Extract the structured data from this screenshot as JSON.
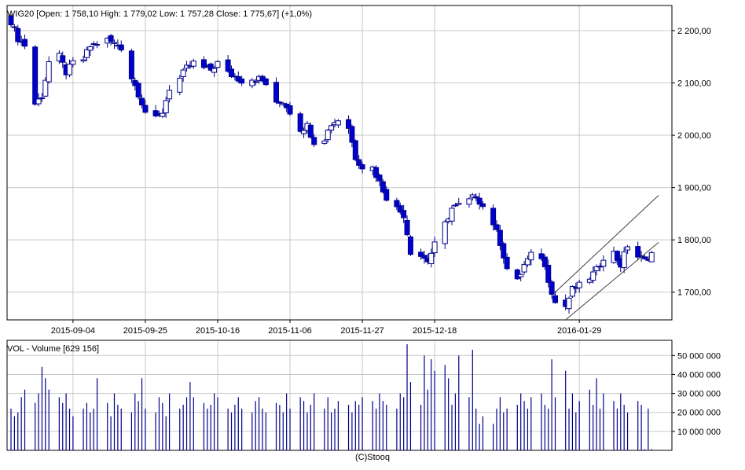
{
  "price_panel": {
    "header": "WIG20 [Open: 1 758,10  High: 1 779,02  Low: 1 757,28  Close: 1 775,67] (+1,0%)"
  },
  "volume_panel": {
    "header": "VOL - Volume [629 156]"
  },
  "footer": {
    "credit": "(C)Stooq"
  },
  "colors": {
    "bull_fill": "#ffffff",
    "bear_fill": "#0000cc",
    "candle_stroke": "#00008b",
    "volume_bar": "#00008b",
    "trend_channel": "#404040",
    "grid": "#c8c8c8",
    "frame": "#000000"
  },
  "chart_data": [
    {
      "type": "candlestick",
      "title": "WIG20",
      "x_tick_labels": [
        "2015-09-04",
        "2015-09-25",
        "2015-10-16",
        "2015-11-06",
        "2015-11-27",
        "2015-12-18",
        "2016-01-29"
      ],
      "y_tick_labels": [
        "2 200,00",
        "2 100,00",
        "2 000,00",
        "1 900,00",
        "1 800,00",
        "1 700,00"
      ],
      "y_ticks": [
        2200,
        2100,
        2000,
        1900,
        1800,
        1700
      ],
      "ylim": [
        1647,
        2248
      ],
      "grid": true,
      "last_bar": {
        "open": 1758.1,
        "high": 1779.02,
        "low": 1757.28,
        "close": 1775.67,
        "change_pct": "+1,0%"
      },
      "close_path": [
        {
          "d": "2015-08-17",
          "c": 2218
        },
        {
          "d": "2015-08-19",
          "c": 2185
        },
        {
          "d": "2015-08-21",
          "c": 2172
        },
        {
          "d": "2015-08-24",
          "c": 2060
        },
        {
          "d": "2015-08-26",
          "c": 2075
        },
        {
          "d": "2015-08-28",
          "c": 2140
        },
        {
          "d": "2015-08-31",
          "c": 2150
        },
        {
          "d": "2015-09-02",
          "c": 2120
        },
        {
          "d": "2015-09-04",
          "c": 2138
        },
        {
          "d": "2015-09-07",
          "c": 2145
        },
        {
          "d": "2015-09-09",
          "c": 2170
        },
        {
          "d": "2015-09-11",
          "c": 2176
        },
        {
          "d": "2015-09-14",
          "c": 2182
        },
        {
          "d": "2015-09-16",
          "c": 2175
        },
        {
          "d": "2015-09-18",
          "c": 2168
        },
        {
          "d": "2015-09-21",
          "c": 2110
        },
        {
          "d": "2015-09-23",
          "c": 2080
        },
        {
          "d": "2015-09-25",
          "c": 2045
        },
        {
          "d": "2015-09-28",
          "c": 2030
        },
        {
          "d": "2015-09-30",
          "c": 2045
        },
        {
          "d": "2015-10-02",
          "c": 2090
        },
        {
          "d": "2015-10-05",
          "c": 2108
        },
        {
          "d": "2015-10-07",
          "c": 2128
        },
        {
          "d": "2015-10-09",
          "c": 2138
        },
        {
          "d": "2015-10-12",
          "c": 2128
        },
        {
          "d": "2015-10-14",
          "c": 2125
        },
        {
          "d": "2015-10-16",
          "c": 2138
        },
        {
          "d": "2015-10-19",
          "c": 2118
        },
        {
          "d": "2015-10-21",
          "c": 2112
        },
        {
          "d": "2015-10-23",
          "c": 2105
        },
        {
          "d": "2015-10-26",
          "c": 2108
        },
        {
          "d": "2015-10-28",
          "c": 2108
        },
        {
          "d": "2015-10-30",
          "c": 2098
        },
        {
          "d": "2015-11-02",
          "c": 2058
        },
        {
          "d": "2015-11-04",
          "c": 2065
        },
        {
          "d": "2015-11-06",
          "c": 2045
        },
        {
          "d": "2015-11-09",
          "c": 2012
        },
        {
          "d": "2015-11-11",
          "c": 2018
        },
        {
          "d": "2015-11-13",
          "c": 1988
        },
        {
          "d": "2015-11-16",
          "c": 1995
        },
        {
          "d": "2015-11-18",
          "c": 2022
        },
        {
          "d": "2015-11-20",
          "c": 2030
        },
        {
          "d": "2015-11-23",
          "c": 2015
        },
        {
          "d": "2015-11-25",
          "c": 1958
        },
        {
          "d": "2015-11-27",
          "c": 1940
        },
        {
          "d": "2015-11-30",
          "c": 1938
        },
        {
          "d": "2015-12-02",
          "c": 1910
        },
        {
          "d": "2015-12-04",
          "c": 1882
        },
        {
          "d": "2015-12-07",
          "c": 1860
        },
        {
          "d": "2015-12-09",
          "c": 1848
        },
        {
          "d": "2015-12-11",
          "c": 1778
        },
        {
          "d": "2015-12-14",
          "c": 1770
        },
        {
          "d": "2015-12-16",
          "c": 1760
        },
        {
          "d": "2015-12-18",
          "c": 1790
        },
        {
          "d": "2015-12-21",
          "c": 1830
        },
        {
          "d": "2015-12-23",
          "c": 1860
        },
        {
          "d": "2015-12-28",
          "c": 1875
        },
        {
          "d": "2015-12-30",
          "c": 1885
        },
        {
          "d": "2016-01-04",
          "c": 1832
        },
        {
          "d": "2016-01-06",
          "c": 1795
        },
        {
          "d": "2016-01-08",
          "c": 1745
        },
        {
          "d": "2016-01-11",
          "c": 1720
        },
        {
          "d": "2016-01-13",
          "c": 1752
        },
        {
          "d": "2016-01-15",
          "c": 1770
        },
        {
          "d": "2016-01-18",
          "c": 1768
        },
        {
          "d": "2016-01-20",
          "c": 1725
        },
        {
          "d": "2016-01-22",
          "c": 1680
        },
        {
          "d": "2016-01-25",
          "c": 1673
        },
        {
          "d": "2016-01-27",
          "c": 1705
        },
        {
          "d": "2016-01-29",
          "c": 1712
        },
        {
          "d": "2016-02-01",
          "c": 1728
        },
        {
          "d": "2016-02-03",
          "c": 1742
        },
        {
          "d": "2016-02-05",
          "c": 1768
        },
        {
          "d": "2016-02-08",
          "c": 1775
        },
        {
          "d": "2016-02-10",
          "c": 1752
        },
        {
          "d": "2016-02-12",
          "c": 1790
        },
        {
          "d": "2016-02-15",
          "c": 1768
        },
        {
          "d": "2016-02-17",
          "c": 1760
        },
        {
          "d": "2016-02-19",
          "c": 1775.67
        }
      ],
      "trend_channel": {
        "upper": [
          {
            "d": "2016-01-22",
            "c": 1700
          },
          {
            "d": "2016-02-21",
            "c": 1885
          }
        ],
        "lower": [
          {
            "d": "2016-01-25",
            "c": 1647
          },
          {
            "d": "2016-02-21",
            "c": 1795
          }
        ]
      }
    },
    {
      "type": "bar",
      "title": "VOL - Volume",
      "last_value": "629 156",
      "y_tick_labels": [
        "50 000 000",
        "40 000 000",
        "30 000 000",
        "20 000 000",
        "10 000 000"
      ],
      "y_ticks": [
        50000000,
        40000000,
        30000000,
        20000000,
        10000000
      ],
      "ylim": [
        0,
        58000000
      ],
      "values_millions": [
        22,
        18,
        20,
        28,
        32,
        25,
        30,
        44,
        38,
        32,
        28,
        25,
        30,
        22,
        18,
        22,
        25,
        20,
        22,
        38,
        25,
        18,
        30,
        24,
        22,
        20,
        30,
        26,
        38,
        22,
        20,
        28,
        25,
        18,
        30,
        22,
        24,
        28,
        36,
        28,
        25,
        22,
        24,
        30,
        28,
        22,
        20,
        24,
        28,
        22,
        20,
        26,
        28,
        22,
        20,
        25,
        24,
        20,
        30,
        22,
        28,
        26,
        20,
        24,
        30,
        22,
        28,
        20,
        22,
        26,
        24,
        20,
        26,
        24,
        28,
        26,
        22,
        30,
        26,
        24,
        22,
        30,
        28,
        56,
        36,
        24,
        50,
        32,
        48,
        42,
        45,
        38,
        24,
        30,
        50,
        28,
        53,
        22,
        14,
        18,
        14,
        22,
        28,
        20,
        22,
        24,
        30,
        26,
        22,
        28,
        30,
        24,
        22,
        48,
        28,
        42,
        22,
        30,
        20,
        26,
        32,
        24,
        38,
        22,
        30,
        26,
        22,
        30,
        24,
        20,
        26,
        24,
        0.63
      ]
    }
  ]
}
